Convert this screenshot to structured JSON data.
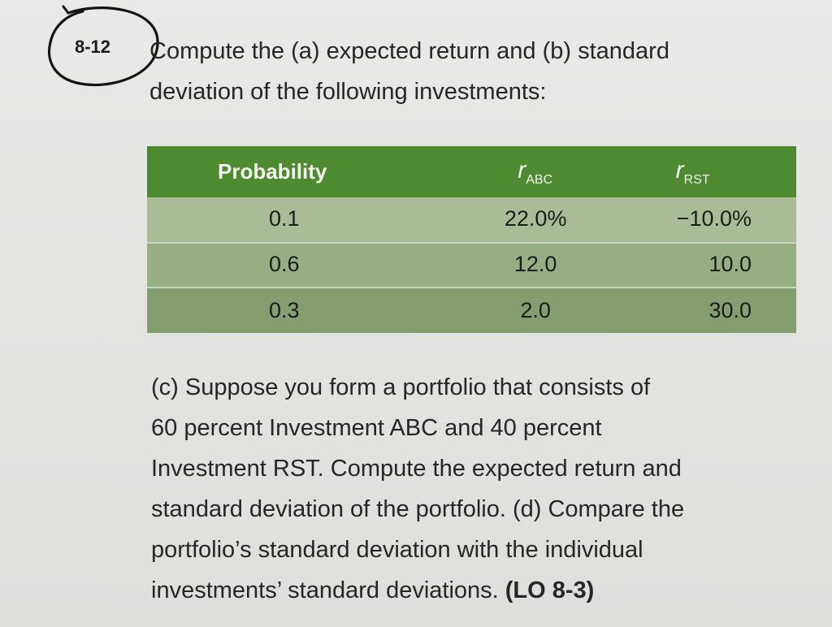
{
  "problem": {
    "number": "8-12",
    "intro_lines": [
      "Compute the (a) expected return and (b) standard",
      "deviation of the following investments:"
    ]
  },
  "table": {
    "headers": {
      "probability": "Probability",
      "abc_main": "r",
      "abc_sub": "ABC",
      "rst_main": "r",
      "rst_sub": "RST"
    },
    "rows": [
      {
        "probability": "0.1",
        "abc": "22.0%",
        "rst": "−10.0%"
      },
      {
        "probability": "0.6",
        "abc": "12.0",
        "rst": "10.0"
      },
      {
        "probability": "0.3",
        "abc": "2.0",
        "rst": "30.0"
      }
    ]
  },
  "body": {
    "lines": [
      "(c) Suppose you form a portfolio that consists of",
      "60 percent Investment ABC and 40 percent",
      "Investment RST. Compute the expected return and",
      "standard deviation of the portfolio. (d) Compare the",
      "portfolio’s standard deviation with the individual"
    ],
    "last_line_text": "investments’ standard deviations. ",
    "lo_reference": "(LO 8-3)"
  },
  "colors": {
    "header_green": "#4e8a2f",
    "row1": "#a9bc96",
    "row2": "#97ad82",
    "row3": "#859e70"
  }
}
